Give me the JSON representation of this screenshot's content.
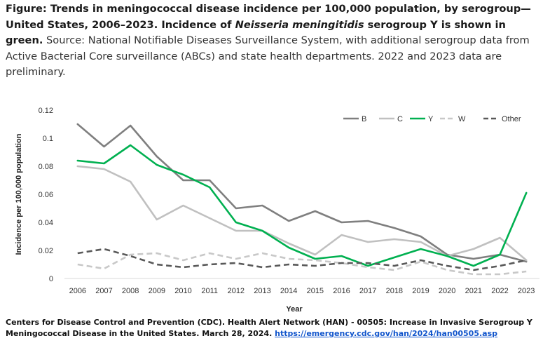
{
  "caption": {
    "bold_part_1": "Figure: Trends in meningococcal disease incidence per 100,000 population, by serogroup—United States, 2006–2023. Incidence of ",
    "italic_part": "Neisseria meningitidis",
    "bold_part_2": " serogroup Y is shown in green.",
    "source_part": " Source: National Notifiable Diseases Surveillance System, with additional serogroup data from Active Bacterial Core surveillance (ABCs) and state health departments. 2022 and 2023 data are preliminary."
  },
  "footer": {
    "citation": "Centers for Disease Control and Prevention (CDC). Health Alert Network (HAN) - 00505: Increase in Invasive Serogroup Y Meningococcal Disease in the United States. March 28, 2024. ",
    "link_text": "https://emergency.cdc.gov/han/2024/han00505.asp"
  },
  "chart_data": {
    "type": "line",
    "title": "",
    "xlabel": "Year",
    "ylabel": "Incidence per 100,000 population",
    "ylim": [
      0,
      0.12
    ],
    "yticks": [
      "0",
      "0.02",
      "0.04",
      "0.06",
      "0.08",
      "0.1",
      "0.12"
    ],
    "ytick_values": [
      0,
      0.02,
      0.04,
      0.06,
      0.08,
      0.1,
      0.12
    ],
    "grid": false,
    "legend_position": "top-right",
    "categories": [
      "2006",
      "2007",
      "2008",
      "2009",
      "2010",
      "2011",
      "2012",
      "2013",
      "2014",
      "2015",
      "2016",
      "2017",
      "2018",
      "2019",
      "2020",
      "2021",
      "2022",
      "2023"
    ],
    "series": [
      {
        "name": "B",
        "color": "#7f7f7f",
        "dash": "solid",
        "values": [
          0.11,
          0.094,
          0.109,
          0.087,
          0.07,
          0.07,
          0.05,
          0.052,
          0.041,
          0.048,
          0.04,
          0.041,
          0.036,
          0.03,
          0.017,
          0.014,
          0.017,
          0.012
        ]
      },
      {
        "name": "C",
        "color": "#c0c0c0",
        "dash": "solid",
        "values": [
          0.08,
          0.078,
          0.069,
          0.042,
          0.052,
          0.043,
          0.034,
          0.034,
          0.025,
          0.017,
          0.031,
          0.026,
          0.028,
          0.026,
          0.016,
          0.021,
          0.029,
          0.013
        ]
      },
      {
        "name": "Y",
        "color": "#00b050",
        "dash": "solid",
        "values": [
          0.084,
          0.082,
          0.095,
          0.081,
          0.074,
          0.065,
          0.04,
          0.034,
          0.022,
          0.014,
          0.016,
          0.009,
          0.015,
          0.021,
          0.016,
          0.009,
          0.017,
          0.061
        ]
      },
      {
        "name": "W",
        "color": "#c8c8c8",
        "dash": "dashed",
        "values": [
          0.01,
          0.007,
          0.017,
          0.018,
          0.013,
          0.018,
          0.014,
          0.018,
          0.014,
          0.013,
          0.011,
          0.008,
          0.006,
          0.012,
          0.006,
          0.003,
          0.003,
          0.005
        ]
      },
      {
        "name": "Other",
        "color": "#595959",
        "dash": "dashed",
        "values": [
          0.018,
          0.021,
          0.016,
          0.01,
          0.008,
          0.01,
          0.011,
          0.008,
          0.01,
          0.009,
          0.011,
          0.011,
          0.009,
          0.013,
          0.009,
          0.006,
          0.009,
          0.013
        ]
      }
    ]
  }
}
